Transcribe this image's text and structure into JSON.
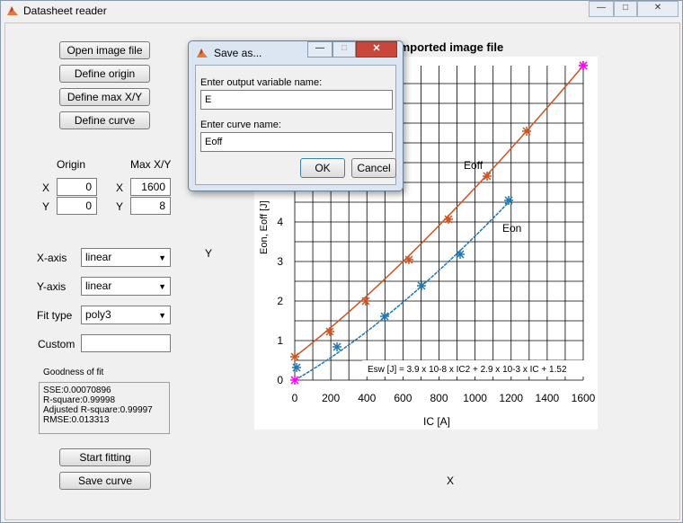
{
  "window": {
    "title": "Datasheet reader",
    "controls": [
      "—",
      "□",
      "✕"
    ]
  },
  "buttons": {
    "open_image": "Open image file",
    "define_origin": "Define origin",
    "define_max": "Define max X/Y",
    "define_curve": "Define curve",
    "start_fitting": "Start fitting",
    "save_curve": "Save curve"
  },
  "origin": {
    "header": "Origin",
    "x_label": "X",
    "y_label": "Y",
    "x": "0",
    "y": "0"
  },
  "max": {
    "header": "Max X/Y",
    "x_label": "X",
    "y_label": "Y",
    "x": "1600",
    "y": "8"
  },
  "axes": {
    "xaxis_label": "X-axis",
    "xaxis_value": "linear",
    "yaxis_label": "Y-axis",
    "yaxis_value": "linear",
    "fit_label": "Fit type",
    "fit_value": "poly3",
    "custom_label": "Custom",
    "custom_value": ""
  },
  "goodness": {
    "title": "Goodness of fit",
    "lines": [
      "SSE:0.00070896",
      "R-square:0.99998",
      "Adjusted R-square:0.99997",
      "RMSE:0.013313"
    ]
  },
  "plot": {
    "title": "Imported image file",
    "side_y_label": "Y",
    "side_x_label": "X",
    "ylabel": "Eon, Eoff [J]",
    "xlabel": "IC [A]",
    "x_ticks": [
      "0",
      "200",
      "400",
      "600",
      "800",
      "1000",
      "1200",
      "1400",
      "1600"
    ],
    "y_ticks": [
      "0",
      "1",
      "2",
      "3",
      "4"
    ],
    "eoff_label": "Eoff",
    "eon_label": "Eon",
    "formula": "Esw [J] = 3.9 x 10-8 x IC2 + 2.9 x 10-3 x IC + 1.52",
    "colors": {
      "eoff": "#d2521f",
      "eon": "#1f77b4",
      "marker_magenta": "#ff00ff"
    }
  },
  "dialog": {
    "title": "Save as...",
    "var_label": "Enter output variable name:",
    "var_value": "E",
    "curve_label": "Enter curve name:",
    "curve_value": "Eoff",
    "ok": "OK",
    "cancel": "Cancel"
  }
}
